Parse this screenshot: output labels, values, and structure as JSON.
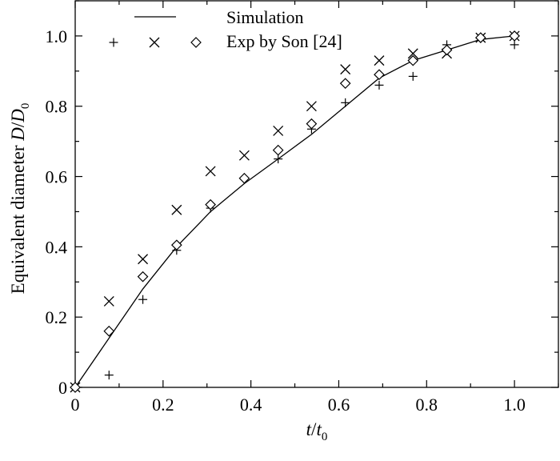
{
  "chart_data": {
    "type": "line",
    "xlabel": {
      "main": "t",
      "sep": "/",
      "var": "t",
      "sub": "0"
    },
    "ylabel": {
      "prefix": "Equivalent diameter ",
      "var": "D",
      "sep": "/",
      "var2": "D",
      "sub": "0"
    },
    "xlim": [
      0,
      1.1
    ],
    "ylim": [
      0,
      1.1
    ],
    "x_ticks": [
      "0",
      "0.2",
      "0.4",
      "0.6",
      "0.8",
      "1.0"
    ],
    "y_ticks": [
      "0",
      "0.2",
      "0.4",
      "0.6",
      "0.8",
      "1.0"
    ],
    "legend": {
      "placement": "top",
      "entries": [
        "Simulation",
        "Exp by Son [24]"
      ]
    },
    "series": [
      {
        "name": "Simulation",
        "marker": "line",
        "x": [
          0,
          0.077,
          0.154,
          0.231,
          0.308,
          0.385,
          0.462,
          0.538,
          0.615,
          0.692,
          0.769,
          0.846,
          0.923,
          1.0
        ],
        "y": [
          0,
          0.14,
          0.28,
          0.4,
          0.5,
          0.58,
          0.65,
          0.72,
          0.8,
          0.88,
          0.93,
          0.96,
          0.99,
          1.0
        ]
      },
      {
        "name": "Exp by Son [24] (+)",
        "marker": "plus",
        "x": [
          0,
          0.077,
          0.154,
          0.231,
          0.308,
          0.385,
          0.462,
          0.538,
          0.615,
          0.692,
          0.769,
          0.846,
          0.923,
          1.0
        ],
        "y": [
          0,
          0.035,
          0.25,
          0.39,
          0.51,
          0.595,
          0.65,
          0.735,
          0.81,
          0.86,
          0.885,
          0.975,
          0.995,
          0.975
        ]
      },
      {
        "name": "Exp by Son [24] (x)",
        "marker": "cross",
        "x": [
          0,
          0.077,
          0.154,
          0.231,
          0.308,
          0.385,
          0.462,
          0.538,
          0.615,
          0.692,
          0.769,
          0.846,
          0.923,
          1.0
        ],
        "y": [
          0,
          0.245,
          0.365,
          0.505,
          0.615,
          0.66,
          0.73,
          0.8,
          0.905,
          0.93,
          0.95,
          0.95,
          0.995,
          1.0
        ]
      },
      {
        "name": "Exp by Son [24] (diamond)",
        "marker": "diamond",
        "x": [
          0,
          0.077,
          0.154,
          0.231,
          0.308,
          0.385,
          0.462,
          0.538,
          0.615,
          0.692,
          0.769,
          0.846,
          0.923,
          1.0
        ],
        "y": [
          0,
          0.16,
          0.315,
          0.405,
          0.52,
          0.595,
          0.675,
          0.75,
          0.865,
          0.89,
          0.93,
          0.96,
          0.995,
          1.0
        ]
      }
    ]
  }
}
